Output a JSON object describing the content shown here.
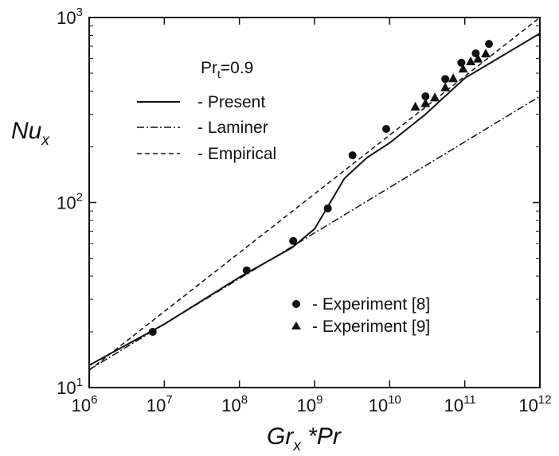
{
  "chart_data": {
    "type": "line",
    "xscale": "log",
    "yscale": "log",
    "xlim": [
      1000000,
      1000000000000
    ],
    "ylim": [
      10,
      1000
    ],
    "xlabel": {
      "main": "Gr",
      "sub": "x",
      "suffix": " *Pr"
    },
    "ylabel": {
      "main": "Nu",
      "sub": "x"
    },
    "x_ticks": [
      {
        "value": 1000000,
        "base": "10",
        "exp": "6"
      },
      {
        "value": 10000000,
        "base": "10",
        "exp": "7"
      },
      {
        "value": 100000000,
        "base": "10",
        "exp": "8"
      },
      {
        "value": 1000000000,
        "base": "10",
        "exp": "9"
      },
      {
        "value": 10000000000,
        "base": "10",
        "exp": "10"
      },
      {
        "value": 100000000000,
        "base": "10",
        "exp": "11"
      },
      {
        "value": 1000000000000,
        "base": "10",
        "exp": "12"
      }
    ],
    "y_ticks": [
      {
        "value": 10,
        "base": "10",
        "exp": "1"
      },
      {
        "value": 100,
        "base": "10",
        "exp": "2"
      },
      {
        "value": 1000,
        "base": "10",
        "exp": "3"
      }
    ],
    "annotation": {
      "main": "Pr",
      "sub": "t",
      "suffix": "=0.9"
    },
    "grid": false,
    "lines": [
      {
        "name": "- Present",
        "style": "solid",
        "points": [
          [
            1000000,
            13.2
          ],
          [
            10000000,
            22.0
          ],
          [
            100000000,
            39.5
          ],
          [
            500000000,
            57.0
          ],
          [
            1000000000,
            72.0
          ],
          [
            1500000000,
            95.0
          ],
          [
            2500000000,
            135.0
          ],
          [
            5000000000,
            175.0
          ],
          [
            10000000000,
            210.0
          ],
          [
            30000000000,
            300.0
          ],
          [
            100000000000,
            470.0
          ],
          [
            1000000000000,
            820.0
          ]
        ]
      },
      {
        "name": "- Laminer",
        "style": "dashdot",
        "points": [
          [
            1000000,
            12.5
          ],
          [
            1000000000000,
            375.0
          ]
        ]
      },
      {
        "name": "- Empirical",
        "style": "dashed",
        "points": [
          [
            1000000,
            12.4
          ],
          [
            1000000000000,
            1000.0
          ]
        ]
      }
    ],
    "scatter": [
      {
        "name": "- Experiment [8]",
        "marker": "circle",
        "points": [
          [
            7000000,
            20.0
          ],
          [
            125000000,
            43.0
          ],
          [
            520000000,
            62.0
          ],
          [
            1500000000,
            93.0
          ],
          [
            3200000000,
            180.0
          ],
          [
            9000000000,
            250.0
          ],
          [
            30000000000,
            375.0
          ],
          [
            55000000000,
            465.0
          ],
          [
            90000000000,
            570.0
          ],
          [
            140000000000,
            640.0
          ],
          [
            210000000000,
            720.0
          ]
        ]
      },
      {
        "name": "- Experiment [9]",
        "marker": "triangle",
        "points": [
          [
            22000000000,
            330.0
          ],
          [
            30000000000,
            345.0
          ],
          [
            40000000000,
            370.0
          ],
          [
            55000000000,
            420.0
          ],
          [
            70000000000,
            470.0
          ],
          [
            95000000000,
            530.0
          ],
          [
            120000000000,
            580.0
          ],
          [
            150000000000,
            600.0
          ],
          [
            190000000000,
            640.0
          ]
        ]
      }
    ],
    "legend_placement": "upper-left (lines), lower-right (markers)"
  }
}
